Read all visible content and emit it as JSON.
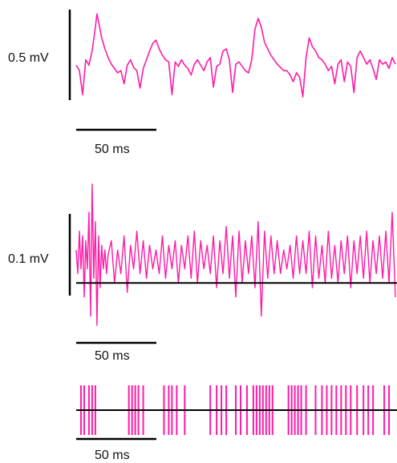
{
  "trace_color": "#ff1aa7",
  "chart_data": [
    {
      "type": "line",
      "name": "",
      "scale_bar_y": "0.5 mV",
      "scale_bar_x": "50 ms",
      "x_ms_range": [
        0,
        200
      ],
      "y_mV_range": [
        -0.27,
        0.56
      ],
      "x_ms": [
        0,
        2,
        4,
        6,
        8,
        10,
        12,
        13,
        14,
        16,
        18,
        20,
        22,
        24,
        26,
        28,
        30,
        32,
        34,
        36,
        38,
        40,
        42,
        44,
        46,
        48,
        50,
        52,
        54,
        56,
        58,
        60,
        62,
        64,
        66,
        68,
        70,
        72,
        74,
        76,
        78,
        80,
        82,
        84,
        86,
        88,
        90,
        92,
        94,
        96,
        98,
        100,
        102,
        104,
        106,
        108,
        110,
        112,
        114,
        116,
        118,
        120,
        122,
        124,
        126,
        128,
        130,
        132,
        134,
        136,
        138,
        140,
        142,
        144,
        146,
        148,
        150,
        152,
        154,
        156,
        158,
        160,
        162,
        164,
        166,
        168,
        170,
        172,
        174,
        176,
        178,
        180,
        182,
        184,
        186,
        188,
        190,
        192,
        194,
        196,
        198,
        200
      ],
      "y_mV": [
        0.05,
        0.0,
        -0.22,
        0.1,
        0.05,
        0.18,
        0.4,
        0.52,
        0.45,
        0.3,
        0.2,
        0.12,
        0.06,
        0.02,
        -0.02,
        0.0,
        -0.12,
        0.05,
        0.1,
        0.03,
        0.0,
        -0.16,
        0.02,
        0.1,
        0.18,
        0.25,
        0.28,
        0.2,
        0.14,
        0.1,
        0.08,
        -0.22,
        0.08,
        0.04,
        0.1,
        0.05,
        0.02,
        -0.04,
        0.06,
        0.1,
        0.05,
        0.0,
        0.08,
        0.12,
        -0.15,
        0.04,
        0.06,
        0.18,
        0.2,
        0.1,
        -0.2,
        0.06,
        0.08,
        0.04,
        0.0,
        -0.02,
        0.1,
        0.38,
        0.48,
        0.4,
        0.26,
        0.2,
        0.14,
        0.1,
        0.06,
        0.03,
        0.0,
        0.0,
        -0.04,
        -0.1,
        -0.02,
        -0.06,
        -0.24,
        0.12,
        0.3,
        0.22,
        0.18,
        0.12,
        0.1,
        0.06,
        0.0,
        0.04,
        -0.12,
        0.06,
        0.1,
        -0.1,
        0.08,
        0.04,
        -0.2,
        0.12,
        0.18,
        0.12,
        0.06,
        0.1,
        0.02,
        -0.08,
        0.1,
        0.06,
        0.08,
        0.02,
        0.12,
        0.06
      ]
    },
    {
      "type": "line",
      "name": "",
      "scale_bar_y": "0.1 mV",
      "scale_bar_x": "50 ms",
      "baseline_mV": -0.05,
      "x_ms_range": [
        0,
        200
      ],
      "y_mV_range": [
        -0.16,
        0.18
      ],
      "x_ms": [
        0,
        1,
        2,
        3,
        4,
        5,
        6,
        7,
        8,
        9,
        10,
        11,
        12,
        13,
        14,
        15,
        16,
        17,
        18,
        19,
        20,
        22,
        24,
        26,
        28,
        30,
        32,
        34,
        36,
        38,
        40,
        42,
        44,
        46,
        48,
        50,
        52,
        54,
        56,
        58,
        60,
        62,
        64,
        66,
        68,
        70,
        72,
        74,
        76,
        78,
        80,
        82,
        84,
        86,
        88,
        90,
        92,
        94,
        96,
        98,
        100,
        102,
        104,
        106,
        108,
        110,
        112,
        114,
        116,
        118,
        120,
        122,
        124,
        126,
        128,
        130,
        132,
        134,
        136,
        138,
        140,
        142,
        144,
        146,
        148,
        150,
        152,
        154,
        156,
        158,
        160,
        162,
        164,
        166,
        168,
        170,
        172,
        174,
        176,
        178,
        180,
        182,
        184,
        186,
        188,
        190,
        192,
        194,
        196,
        198,
        200
      ],
      "y_mV": [
        0.02,
        -0.03,
        0.06,
        -0.02,
        0.05,
        -0.08,
        0.04,
        -0.02,
        0.1,
        -0.12,
        0.16,
        -0.04,
        0.08,
        -0.14,
        0.05,
        -0.06,
        0.03,
        -0.02,
        0.02,
        -0.03,
        0.01,
        0.04,
        -0.05,
        0.02,
        -0.03,
        0.05,
        -0.07,
        0.03,
        -0.02,
        0.06,
        -0.03,
        0.04,
        -0.04,
        0.03,
        -0.02,
        0.02,
        -0.03,
        0.05,
        -0.04,
        0.03,
        -0.02,
        0.04,
        -0.05,
        0.03,
        -0.02,
        0.05,
        -0.04,
        0.06,
        -0.05,
        0.04,
        -0.02,
        0.03,
        -0.03,
        0.05,
        -0.06,
        0.04,
        -0.03,
        0.07,
        -0.04,
        0.05,
        -0.08,
        0.06,
        -0.05,
        0.04,
        -0.03,
        0.05,
        -0.06,
        0.08,
        -0.12,
        0.06,
        -0.04,
        0.05,
        -0.03,
        0.04,
        -0.03,
        0.02,
        -0.02,
        0.03,
        -0.04,
        0.05,
        -0.03,
        0.04,
        -0.03,
        0.06,
        -0.06,
        0.05,
        -0.04,
        0.03,
        -0.05,
        0.06,
        -0.04,
        0.03,
        -0.05,
        0.04,
        -0.03,
        0.05,
        -0.06,
        0.04,
        -0.03,
        0.05,
        -0.04,
        0.06,
        -0.05,
        0.04,
        -0.03,
        0.05,
        -0.04,
        0.06,
        -0.05,
        0.1,
        -0.08
      ]
    },
    {
      "type": "raster",
      "name": "",
      "scale_bar_x": "50 ms",
      "x_ms_range": [
        0,
        200
      ],
      "event_times_ms": [
        3,
        5,
        8,
        10,
        12,
        33,
        35,
        37,
        39,
        42,
        55,
        58,
        60,
        63,
        68,
        84,
        88,
        91,
        94,
        100,
        103,
        107,
        111,
        113,
        115,
        117,
        119,
        121,
        123,
        133,
        135,
        137,
        139,
        141,
        144,
        150,
        154,
        157,
        160,
        163,
        166,
        169,
        172,
        176,
        180,
        183,
        186,
        193,
        196
      ]
    }
  ]
}
